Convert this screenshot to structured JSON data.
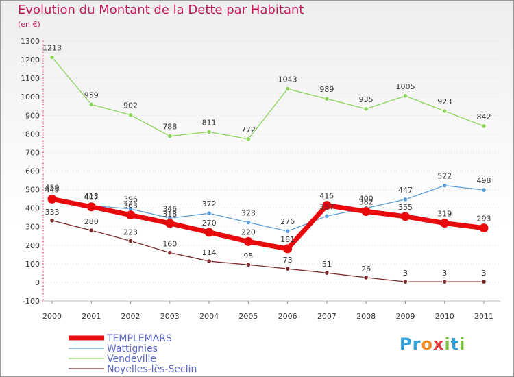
{
  "title": "Evolution du Montant de la Dette par Habitant",
  "subtitle": "(en €)",
  "logo": {
    "letters": [
      "P",
      "r",
      "o",
      "x",
      "i",
      "t",
      "i"
    ],
    "colors": [
      "#2e9fd8",
      "#2e9fd8",
      "#f08a24",
      "#e23b3b",
      "#7cc242",
      "#2e9fd8",
      "#7cc242"
    ]
  },
  "chart_data": {
    "type": "line",
    "title": "Evolution du Montant de la Dette par Habitant",
    "ylabel": "(en €)",
    "xlabel": "",
    "x": [
      "2000",
      "2001",
      "2002",
      "2003",
      "2004",
      "2005",
      "2006",
      "2007",
      "2008",
      "2009",
      "2010",
      "2011"
    ],
    "ylim": [
      -100,
      1300
    ],
    "yticks": [
      "-100",
      "0",
      "100",
      "200",
      "300",
      "400",
      "500",
      "600",
      "700",
      "800",
      "900",
      "1000",
      "1100",
      "1200",
      "1300"
    ],
    "grid": "horizontal",
    "legend_position": "bottom-left",
    "series": [
      {
        "name": "TEMPLEMARS",
        "color": "#e8090d",
        "values": [
          449,
          407,
          363,
          318,
          270,
          220,
          181,
          415,
          382,
          355,
          319,
          293
        ]
      },
      {
        "name": "Wattignies",
        "color": "#5b9bd5",
        "values": [
          459,
          413,
          396,
          346,
          372,
          323,
          276,
          357,
          400,
          447,
          522,
          498
        ]
      },
      {
        "name": "Vendeville",
        "color": "#8bd45a",
        "values": [
          1213,
          959,
          902,
          788,
          811,
          772,
          1043,
          989,
          935,
          1005,
          923,
          842
        ]
      },
      {
        "name": "Noyelles-lès-Seclin",
        "color": "#7b2b2b",
        "values": [
          333,
          280,
          223,
          160,
          114,
          95,
          73,
          51,
          26,
          3,
          3,
          3
        ]
      }
    ]
  }
}
